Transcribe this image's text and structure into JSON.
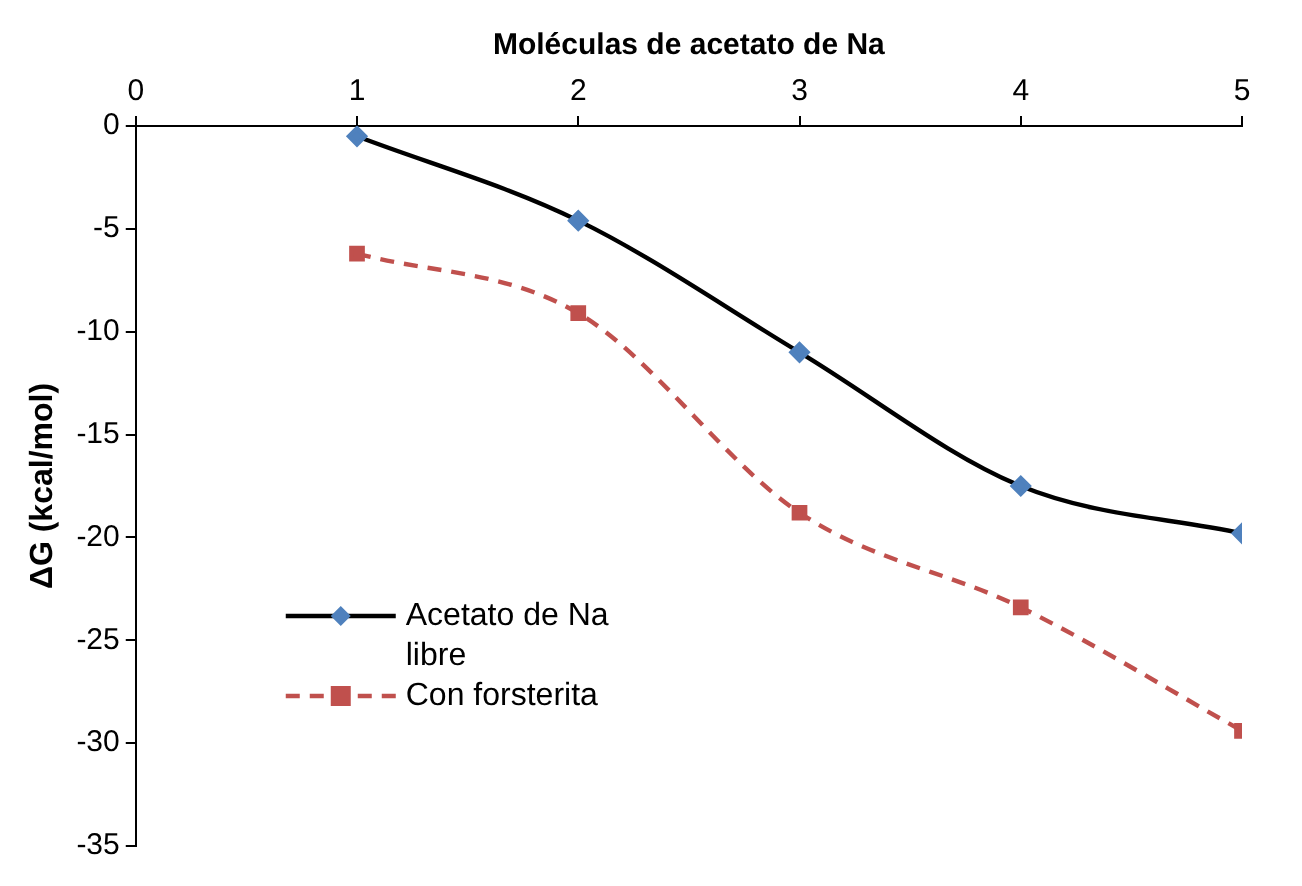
{
  "chart_data": {
    "type": "line",
    "xlabel": "Moléculas de acetato de Na",
    "ylabel": "ΔG (kcal/mol)",
    "x": [
      1,
      2,
      3,
      4,
      5
    ],
    "series": [
      {
        "name": "Acetato de Na libre",
        "color": "#000000",
        "colors": [
          "#4f81bd",
          "#4f81bd",
          "#4f81bd",
          "#4f81bd",
          "#4f81bd"
        ],
        "marker": "diamond",
        "line_style": "solid",
        "values": [
          -0.5,
          -4.6,
          -11.0,
          -17.5,
          -19.8
        ]
      },
      {
        "name": "Con forsterita",
        "color": "#c0504d",
        "marker": "square",
        "line_style": "dashed",
        "values": [
          -6.2,
          -9.1,
          -18.8,
          -23.4,
          -29.4
        ]
      }
    ],
    "xlim": [
      0,
      5
    ],
    "xticks": [
      0,
      1,
      2,
      3,
      4,
      5
    ],
    "ylim": [
      -35,
      0
    ],
    "yticks": [
      -35,
      -30,
      -25,
      -20,
      -15,
      -10,
      -5,
      0
    ],
    "grid": false,
    "legend": "bottom left"
  }
}
